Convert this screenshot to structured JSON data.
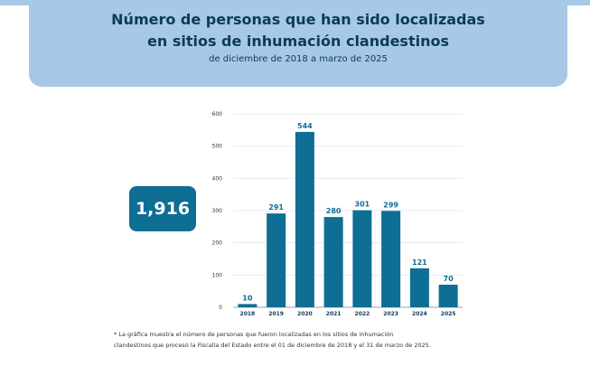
{
  "header": {
    "title_line1": "Número de personas que han sido localizadas",
    "title_line2": "en sitios de inhumación clandestinos",
    "subtitle": "de diciembre de 2018 a marzo de 2025"
  },
  "total": "1,916",
  "footnote_line1": "* La gráfica muestra el número de personas que fueron localizadas en los sitios de inhumación",
  "footnote_line2": "clandestinos que procesó la Fiscalía del Estado entre el 01 de diciembre de 2018 y el 31 de marzo de 2025.",
  "colors": {
    "bar": "#0e6e94",
    "header_bg": "#a7c8e6",
    "title": "#0a3b5c"
  },
  "chart_data": {
    "type": "bar",
    "categories": [
      "2018",
      "2019",
      "2020",
      "2021",
      "2022",
      "2023",
      "2024",
      "2025"
    ],
    "values": [
      10,
      291,
      544,
      280,
      301,
      299,
      121,
      70
    ],
    "data_labels": [
      "10",
      "291",
      "544",
      "280",
      "301",
      "299",
      "121",
      "70"
    ],
    "yticks": [
      0,
      100,
      200,
      300,
      400,
      500,
      600
    ],
    "ylim": [
      0,
      600
    ],
    "grid": true
  }
}
